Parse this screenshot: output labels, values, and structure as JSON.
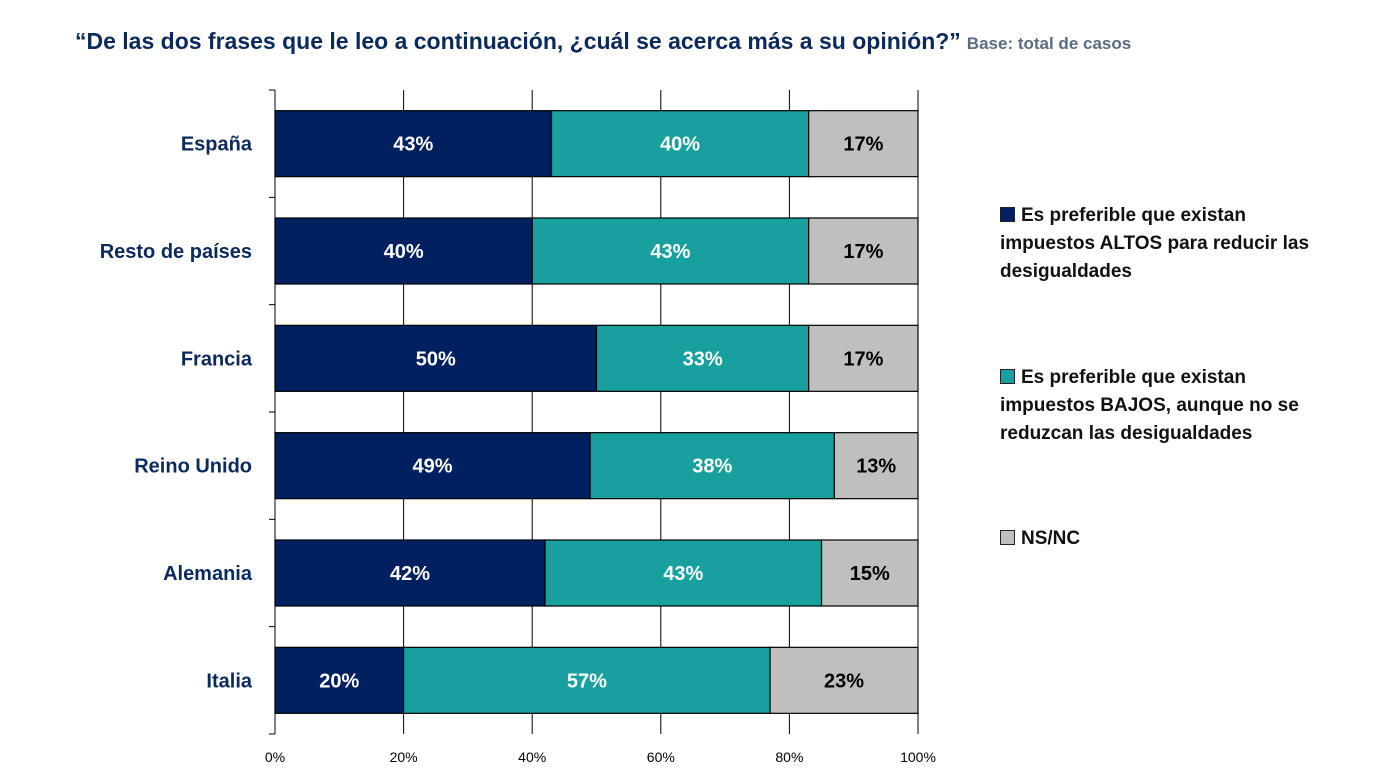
{
  "chart_data": {
    "type": "bar",
    "orientation": "horizontal",
    "stacked": true,
    "title": "“De las dos frases que le leo a continuación, ¿cuál se acerca más a su opinión?”",
    "subtitle": "Base: total de casos",
    "categories": [
      "España",
      "Resto de países",
      "Francia",
      "Reino Unido",
      "Alemania",
      "Italia"
    ],
    "series": [
      {
        "name": "Es preferible que existan impuestos ALTOS para reducir las desigualdades",
        "color": "#002060",
        "label_color": "#ffffff",
        "values": [
          43,
          40,
          50,
          49,
          42,
          20
        ]
      },
      {
        "name": "Es preferible que existan impuestos BAJOS, aunque no se reduzcan las desigualdades",
        "color": "#17a09d",
        "label_color": "#ffffff",
        "values": [
          40,
          43,
          33,
          38,
          43,
          57
        ]
      },
      {
        "name": "NS/NC",
        "color": "#bfbfbf",
        "label_color": "#000000",
        "values": [
          17,
          17,
          17,
          13,
          15,
          23
        ]
      }
    ],
    "xlim": [
      0,
      100
    ],
    "xticks": [
      "0%",
      "20%",
      "40%",
      "60%",
      "80%",
      "100%"
    ],
    "grid": true,
    "legend_position": "right"
  }
}
